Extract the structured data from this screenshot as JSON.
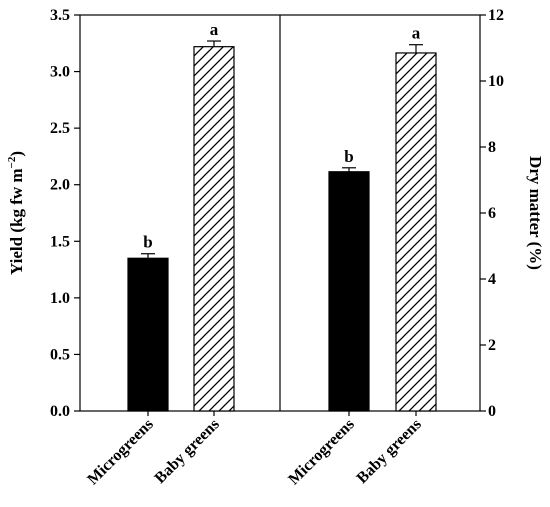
{
  "chart_data": {
    "type": "bar",
    "panels": [
      {
        "categories": [
          "Microgreens",
          "Baby greens"
        ],
        "values": [
          1.35,
          3.22
        ],
        "errors": [
          0.04,
          0.05
        ],
        "significance": [
          "b",
          "a"
        ],
        "fills": [
          "solid",
          "hatch"
        ],
        "ylabel": "Yield (kg fw m",
        "ylabel_sup": "−2",
        "ylabel_close": ")",
        "ylim": [
          0,
          3.5
        ],
        "yticks": [
          "0.0",
          "0.5",
          "1.0",
          "1.5",
          "2.0",
          "2.5",
          "3.0",
          "3.5"
        ],
        "axis_side": "left"
      },
      {
        "categories": [
          "Microgreens",
          "Baby greens"
        ],
        "values": [
          7.25,
          10.85
        ],
        "errors": [
          0.12,
          0.25
        ],
        "significance": [
          "b",
          "a"
        ],
        "fills": [
          "solid",
          "hatch"
        ],
        "ylabel": "Dry matter (%)",
        "ylim": [
          0,
          12
        ],
        "yticks": [
          "0",
          "2",
          "4",
          "6",
          "8",
          "10",
          "12"
        ],
        "axis_side": "right"
      }
    ],
    "grid": false,
    "colors": {
      "solid": "#000000",
      "hatch_line": "#000000",
      "hatch_bg": "#ffffff"
    }
  }
}
